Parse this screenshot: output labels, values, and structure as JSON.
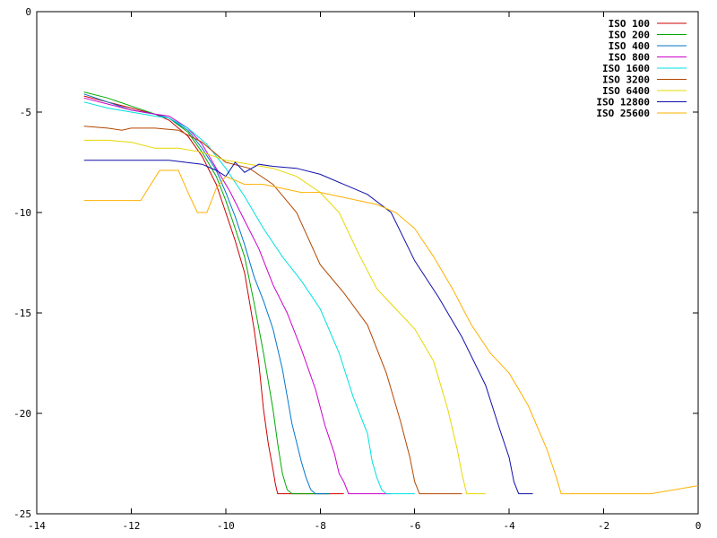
{
  "chart_data": {
    "type": "line",
    "title": "",
    "xlabel": "",
    "ylabel": "",
    "xlim": [
      -14,
      0
    ],
    "ylim": [
      -25,
      0
    ],
    "xticks": [
      -14,
      -12,
      -10,
      -8,
      -6,
      -4,
      -2,
      0
    ],
    "yticks": [
      0,
      -5,
      -10,
      -15,
      -20,
      -25
    ],
    "grid": false,
    "legend_position": "top-right",
    "series": [
      {
        "name": "ISO 100",
        "color": "#cc0000",
        "x": [
          -13,
          -12.5,
          -12,
          -11.5,
          -11.2,
          -10.8,
          -10.5,
          -10.2,
          -10,
          -9.8,
          -9.6,
          -9.4,
          -9.3,
          -9.2,
          -9.1,
          -9.0,
          -8.95,
          -8.9,
          -8.8,
          -8.6,
          -8.2,
          -8.0,
          -7.8,
          -7.5
        ],
        "y": [
          -4.2,
          -4.5,
          -4.8,
          -5.1,
          -5.4,
          -6.2,
          -7.2,
          -8.6,
          -10,
          -11.4,
          -13.0,
          -15.8,
          -17.5,
          -19.8,
          -21.5,
          -22.8,
          -23.5,
          -24,
          -24,
          -24,
          -24,
          -24,
          -24,
          -24
        ]
      },
      {
        "name": "ISO 200",
        "color": "#00aa00",
        "x": [
          -13,
          -12.5,
          -12,
          -11.5,
          -11.2,
          -10.8,
          -10.5,
          -10.2,
          -10,
          -9.8,
          -9.6,
          -9.4,
          -9.2,
          -9.0,
          -8.9,
          -8.8,
          -8.7,
          -8.6,
          -8.5,
          -8.2,
          -8.0,
          -7.8
        ],
        "y": [
          -4.0,
          -4.3,
          -4.7,
          -5.1,
          -5.3,
          -6.0,
          -7.0,
          -8.2,
          -9.4,
          -10.8,
          -12.2,
          -14.5,
          -17.0,
          -19.8,
          -21.5,
          -23.0,
          -23.8,
          -24,
          -24,
          -24,
          -24,
          -24
        ]
      },
      {
        "name": "ISO 400",
        "color": "#0077cc",
        "x": [
          -13,
          -12.5,
          -12,
          -11.5,
          -11.2,
          -10.8,
          -10.5,
          -10.2,
          -10.0,
          -9.8,
          -9.6,
          -9.4,
          -9.2,
          -9.0,
          -8.8,
          -8.6,
          -8.4,
          -8.3,
          -8.2,
          -8.1,
          -8.0,
          -7.8
        ],
        "y": [
          -4.1,
          -4.5,
          -4.9,
          -5.1,
          -5.3,
          -5.9,
          -6.8,
          -7.9,
          -9.0,
          -10.2,
          -11.6,
          -13.2,
          -14.4,
          -15.8,
          -17.8,
          -20.5,
          -22.4,
          -23.2,
          -23.8,
          -24,
          -24,
          -24
        ]
      },
      {
        "name": "ISO 800",
        "color": "#cc00cc",
        "x": [
          -13,
          -12.5,
          -12,
          -11.5,
          -11.2,
          -10.8,
          -10.5,
          -10.2,
          -9.9,
          -9.6,
          -9.3,
          -9.0,
          -8.7,
          -8.4,
          -8.1,
          -7.9,
          -7.7,
          -7.6,
          -7.5,
          -7.4,
          -7.0,
          -6.5
        ],
        "y": [
          -4.3,
          -4.6,
          -4.9,
          -5.1,
          -5.2,
          -5.8,
          -6.6,
          -7.8,
          -9.0,
          -10.4,
          -11.8,
          -13.6,
          -15.0,
          -16.8,
          -18.8,
          -20.6,
          -22.0,
          -23.0,
          -23.4,
          -24,
          -24,
          -24
        ]
      },
      {
        "name": "ISO 1600",
        "color": "#00e0e0",
        "x": [
          -13,
          -12.5,
          -12,
          -11.5,
          -11.2,
          -10.8,
          -10.4,
          -10.0,
          -9.6,
          -9.2,
          -8.8,
          -8.4,
          -8.0,
          -7.6,
          -7.3,
          -7.0,
          -6.9,
          -6.8,
          -6.7,
          -6.6,
          -6.5,
          -6.0
        ],
        "y": [
          -4.5,
          -4.8,
          -5.0,
          -5.2,
          -5.3,
          -5.8,
          -6.6,
          -7.8,
          -9.2,
          -10.8,
          -12.2,
          -13.4,
          -14.8,
          -17.0,
          -19.2,
          -21.0,
          -22.4,
          -23.2,
          -23.8,
          -24,
          -24,
          -24
        ]
      },
      {
        "name": "ISO 3200",
        "color": "#b34700",
        "x": [
          -13,
          -12.5,
          -12.2,
          -12.0,
          -11.5,
          -11.0,
          -10.5,
          -10.0,
          -9.5,
          -9.0,
          -8.5,
          -8.0,
          -7.5,
          -7.0,
          -6.6,
          -6.3,
          -6.1,
          -6.0,
          -5.9,
          -5.8,
          -5.6,
          -5.0
        ],
        "y": [
          -5.7,
          -5.8,
          -5.9,
          -5.8,
          -5.8,
          -5.9,
          -6.5,
          -7.5,
          -7.8,
          -8.6,
          -10.0,
          -12.6,
          -14.0,
          -15.6,
          -18.0,
          -20.4,
          -22.2,
          -23.4,
          -24,
          -24,
          -24,
          -24
        ]
      },
      {
        "name": "ISO 6400",
        "color": "#e6d800",
        "x": [
          -13,
          -12.5,
          -12.0,
          -11.5,
          -11.0,
          -10.5,
          -10.0,
          -9.5,
          -9.0,
          -8.5,
          -8.0,
          -7.6,
          -7.2,
          -6.8,
          -6.4,
          -6.0,
          -5.6,
          -5.3,
          -5.1,
          -5.0,
          -4.9,
          -4.5
        ],
        "y": [
          -6.4,
          -6.4,
          -6.5,
          -6.8,
          -6.8,
          -7.0,
          -7.4,
          -7.6,
          -7.8,
          -8.2,
          -9.0,
          -10.0,
          -12.0,
          -13.8,
          -14.8,
          -15.8,
          -17.4,
          -19.8,
          -21.8,
          -23.0,
          -24,
          -24
        ]
      },
      {
        "name": "ISO 12800",
        "color": "#1010aa",
        "x": [
          -13,
          -12.0,
          -11.2,
          -10.5,
          -10.2,
          -10.0,
          -9.8,
          -9.6,
          -9.3,
          -9.0,
          -8.5,
          -8.0,
          -7.5,
          -7.0,
          -6.5,
          -6.0,
          -5.5,
          -5.0,
          -4.5,
          -4.2,
          -4.0,
          -3.9,
          -3.8,
          -3.5
        ],
        "y": [
          -7.4,
          -7.4,
          -7.4,
          -7.6,
          -7.9,
          -8.2,
          -7.5,
          -8.0,
          -7.6,
          -7.7,
          -7.8,
          -8.1,
          -8.6,
          -9.1,
          -10.0,
          -12.4,
          -14.2,
          -16.2,
          -18.6,
          -20.8,
          -22.2,
          -23.4,
          -24,
          -24
        ]
      },
      {
        "name": "ISO 25600",
        "color": "#ffb000",
        "x": [
          -13,
          -12.2,
          -11.8,
          -11.4,
          -11.0,
          -10.8,
          -10.6,
          -10.4,
          -10.2,
          -10.0,
          -9.6,
          -9.2,
          -8.8,
          -8.4,
          -8.0,
          -7.6,
          -7.2,
          -6.8,
          -6.4,
          -6.0,
          -5.6,
          -5.2,
          -4.8,
          -4.4,
          -4.0,
          -3.6,
          -3.2,
          -3.0,
          -2.9,
          -2.8,
          -2.0,
          -1.0,
          0.0
        ],
        "y": [
          -9.4,
          -9.4,
          -9.4,
          -7.9,
          -7.9,
          -9.0,
          -10.0,
          -10.0,
          -8.8,
          -8.2,
          -8.6,
          -8.6,
          -8.8,
          -9.0,
          -9.0,
          -9.2,
          -9.4,
          -9.6,
          -10.0,
          -10.8,
          -12.2,
          -13.8,
          -15.6,
          -17.0,
          -18.0,
          -19.6,
          -21.8,
          -23.2,
          -24,
          -24,
          -24,
          -24,
          -23.6
        ]
      }
    ]
  }
}
